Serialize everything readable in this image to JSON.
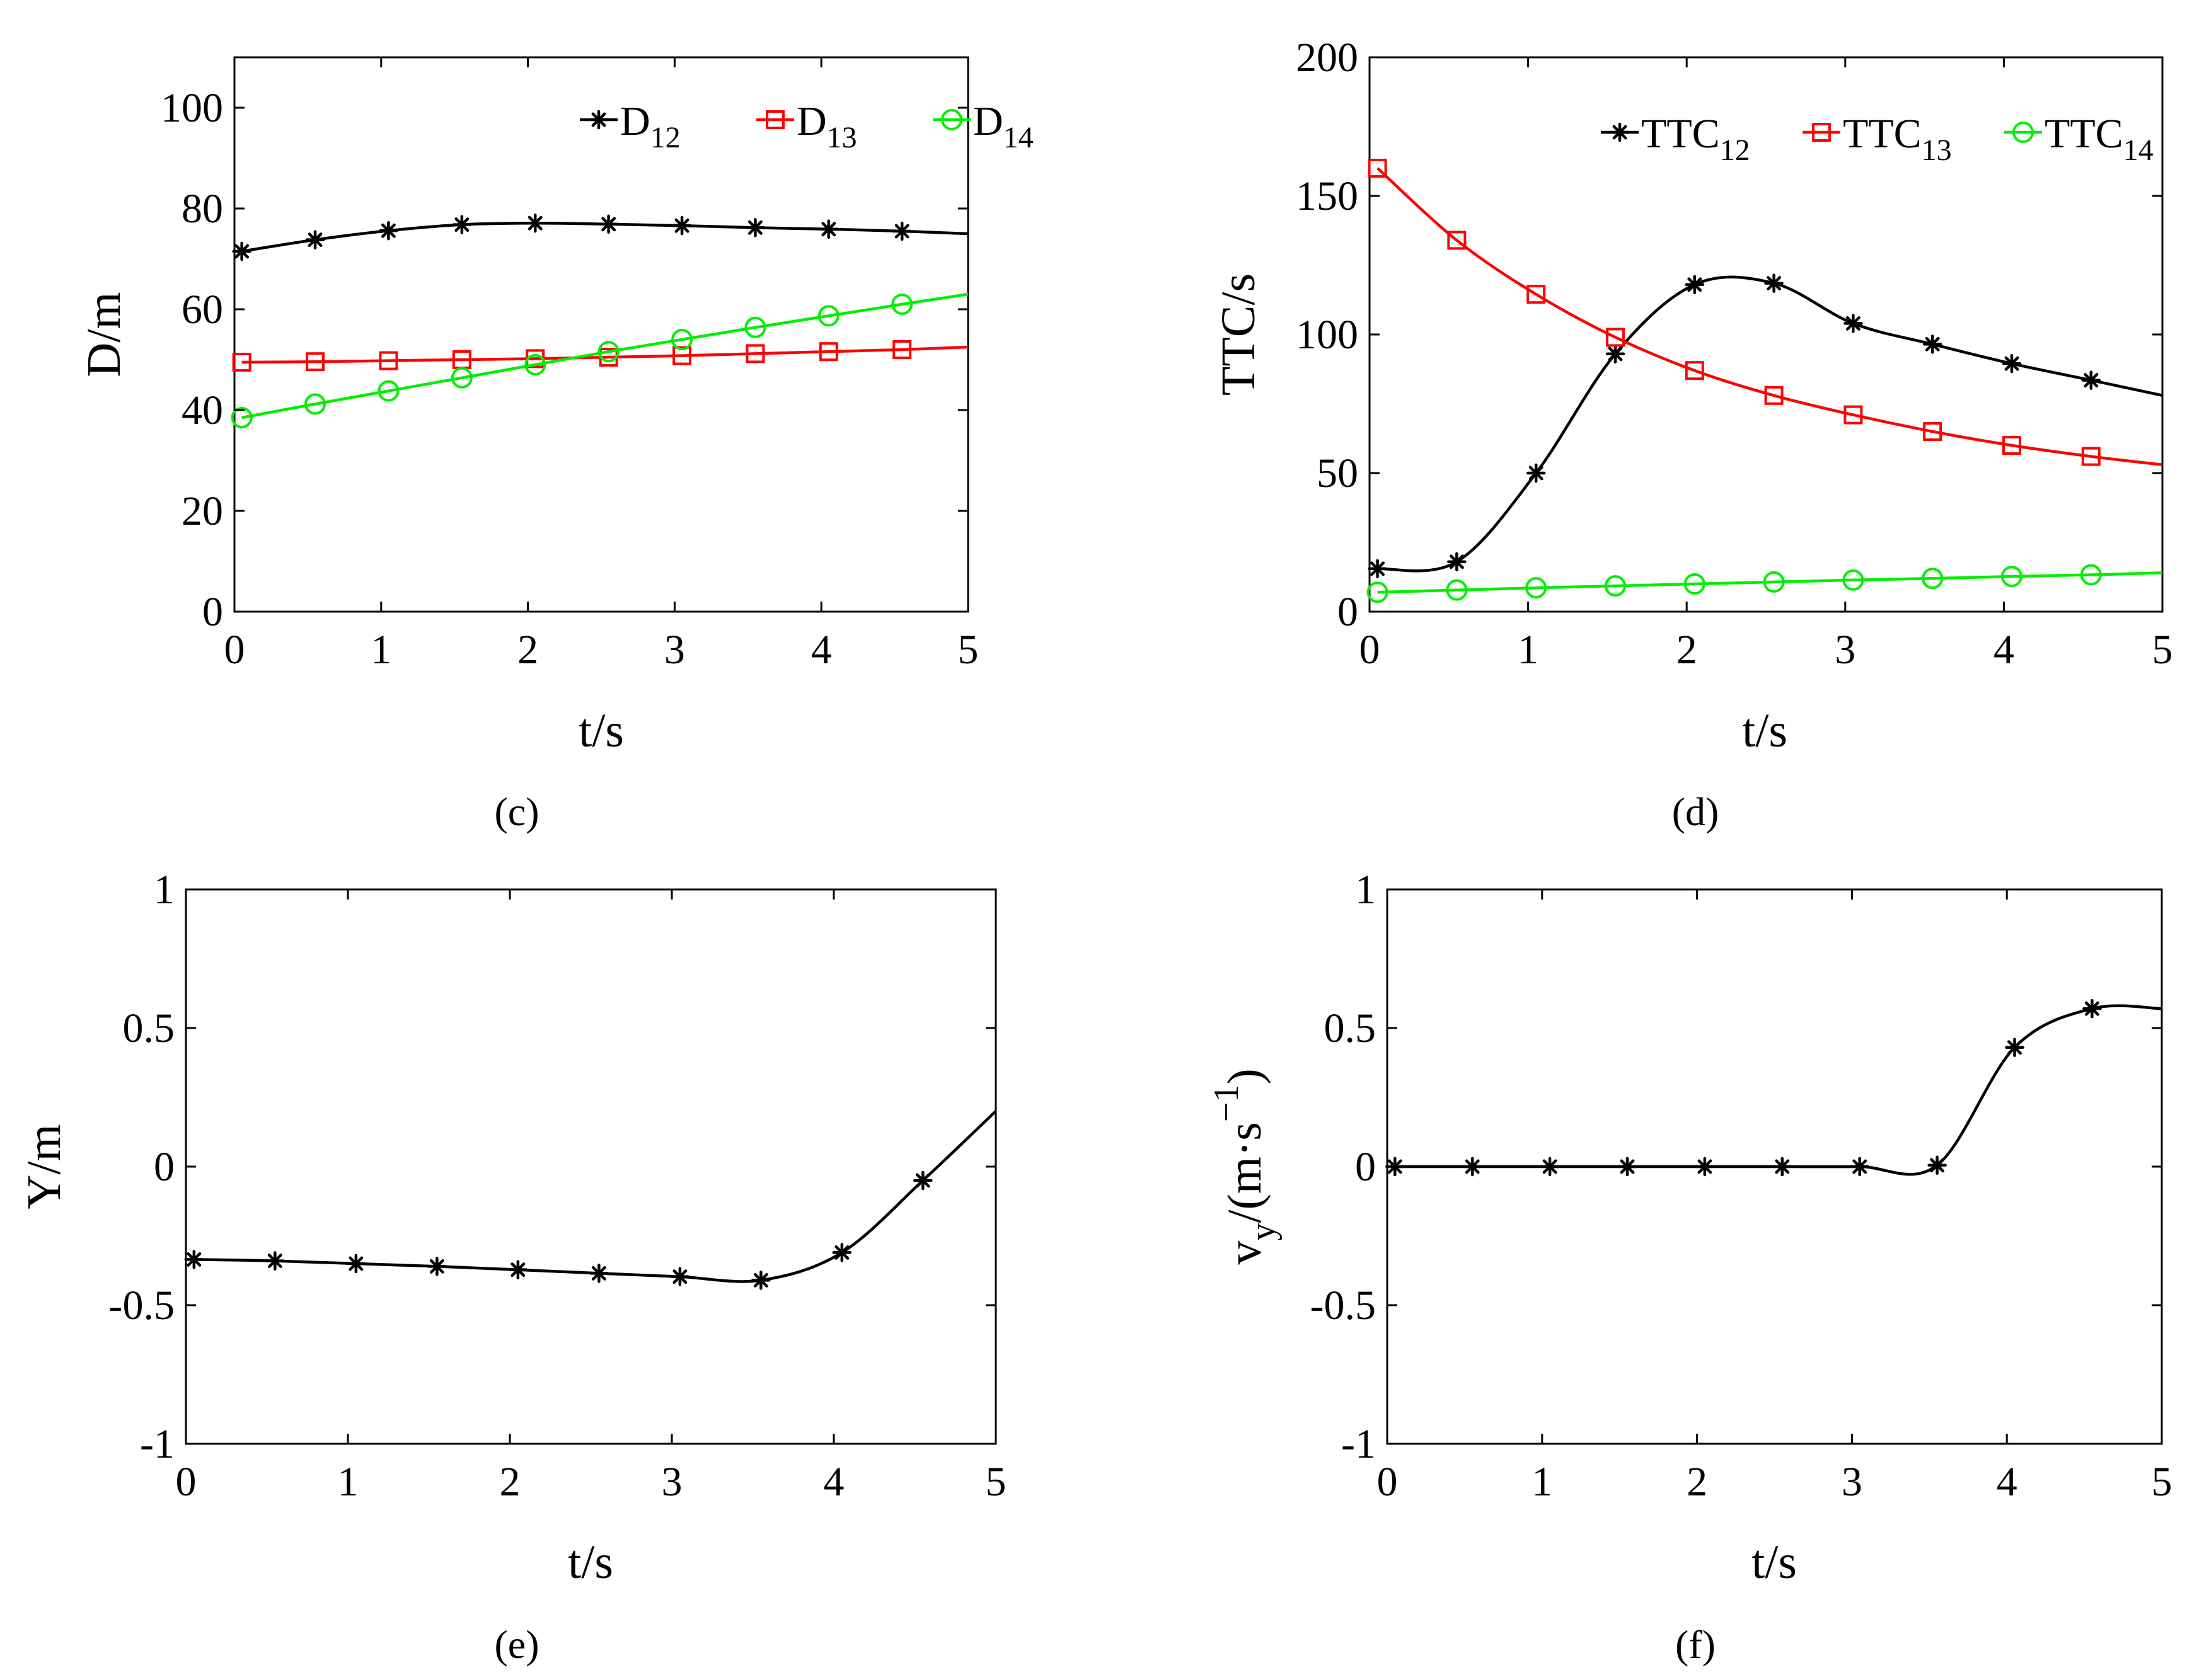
{
  "chart_data": [
    {
      "panel": "(c)",
      "type": "line",
      "xlabel": "t/s",
      "ylabel": "D/m",
      "xlim": [
        0,
        5
      ],
      "ylim": [
        0,
        110
      ],
      "xticks": [
        0,
        1,
        2,
        3,
        4,
        5
      ],
      "yticks": [
        0,
        20,
        40,
        60,
        80,
        100
      ],
      "legend_position": "top-right",
      "series": [
        {
          "name": "D",
          "sub": "12",
          "color": "#000000",
          "marker": "star",
          "x": [
            0.05,
            0.55,
            1.05,
            1.55,
            2.05,
            2.55,
            3.05,
            3.55,
            4.05,
            4.55,
            5.0
          ],
          "y": [
            71.5,
            73.8,
            75.6,
            76.8,
            77.1,
            76.9,
            76.6,
            76.2,
            75.9,
            75.5,
            75.0
          ]
        },
        {
          "name": "D",
          "sub": "13",
          "color": "#ff0000",
          "marker": "square",
          "x": [
            0.05,
            0.55,
            1.05,
            1.55,
            2.05,
            2.55,
            3.05,
            3.55,
            4.05,
            4.55,
            5.0
          ],
          "y": [
            49.5,
            49.6,
            49.8,
            50.0,
            50.2,
            50.5,
            50.8,
            51.2,
            51.6,
            52.0,
            52.5
          ]
        },
        {
          "name": "D",
          "sub": "14",
          "color": "#00ee00",
          "marker": "circle",
          "x": [
            0.05,
            0.55,
            1.05,
            1.55,
            2.05,
            2.55,
            3.05,
            3.55,
            4.05,
            4.55,
            5.0
          ],
          "y": [
            38.5,
            41.2,
            43.8,
            46.4,
            49.0,
            51.6,
            54.0,
            56.4,
            58.7,
            61.0,
            63.0
          ]
        }
      ]
    },
    {
      "panel": "(d)",
      "type": "line",
      "xlabel": "t/s",
      "ylabel": "TTC/s",
      "xlim": [
        0,
        5
      ],
      "ylim": [
        0,
        200
      ],
      "xticks": [
        0,
        1,
        2,
        3,
        4,
        5
      ],
      "yticks": [
        0,
        50,
        100,
        150,
        200
      ],
      "legend_position": "top-right",
      "series": [
        {
          "name": "TTC",
          "sub": "12",
          "color": "#000000",
          "marker": "star",
          "x": [
            0.05,
            0.55,
            1.05,
            1.55,
            2.05,
            2.55,
            3.05,
            3.55,
            4.05,
            4.55,
            5.0
          ],
          "y": [
            15.5,
            18.0,
            50.0,
            93.0,
            118.0,
            118.5,
            104.0,
            96.5,
            89.5,
            83.5,
            78.0
          ]
        },
        {
          "name": "TTC",
          "sub": "13",
          "color": "#ff0000",
          "marker": "square",
          "x": [
            0.05,
            0.55,
            1.05,
            1.55,
            2.05,
            2.55,
            3.05,
            3.55,
            4.05,
            4.55,
            5.0
          ],
          "y": [
            160.0,
            134.0,
            114.5,
            99.0,
            87.0,
            78.0,
            71.0,
            65.0,
            60.0,
            56.0,
            53.0
          ]
        },
        {
          "name": "TTC",
          "sub": "14",
          "color": "#00ee00",
          "marker": "circle",
          "x": [
            0.05,
            0.55,
            1.05,
            1.55,
            2.05,
            2.55,
            3.05,
            3.55,
            4.05,
            4.55,
            5.0
          ],
          "y": [
            7.0,
            7.8,
            8.6,
            9.3,
            10.0,
            10.7,
            11.4,
            12.0,
            12.7,
            13.3,
            14.0
          ]
        }
      ]
    },
    {
      "panel": "(e)",
      "type": "line",
      "xlabel": "t/s",
      "ylabel": "Y/m",
      "xlim": [
        0,
        5
      ],
      "ylim": [
        -1,
        1
      ],
      "xticks": [
        0,
        1,
        2,
        3,
        4,
        5
      ],
      "yticks": [
        -1,
        -0.5,
        0,
        0.5,
        1
      ],
      "series": [
        {
          "name": "Y",
          "color": "#000000",
          "marker": "star",
          "x": [
            0.05,
            0.55,
            1.05,
            1.55,
            2.05,
            2.55,
            3.05,
            3.55,
            4.05,
            4.55,
            5.0
          ],
          "y": [
            -0.335,
            -0.34,
            -0.35,
            -0.36,
            -0.372,
            -0.385,
            -0.397,
            -0.41,
            -0.31,
            -0.05,
            0.2
          ]
        }
      ]
    },
    {
      "panel": "(f)",
      "type": "line",
      "xlabel": "t/s",
      "ylabel": "v",
      "ylabel_sub": "y",
      "ylabel_rest": "/(m·s",
      "ylabel_sup": "−1",
      "ylabel_close": ")",
      "xlim": [
        0,
        5
      ],
      "ylim": [
        -1,
        1
      ],
      "xticks": [
        0,
        1,
        2,
        3,
        4,
        5
      ],
      "yticks": [
        -1,
        -0.5,
        0,
        0.5,
        1
      ],
      "series": [
        {
          "name": "v_y",
          "color": "#000000",
          "marker": "star",
          "x": [
            0.05,
            0.55,
            1.05,
            1.55,
            2.05,
            2.55,
            3.05,
            3.55,
            4.05,
            4.55,
            5.0
          ],
          "y": [
            0,
            0,
            0,
            0,
            0,
            0,
            0,
            0.005,
            0.43,
            0.57,
            0.57
          ]
        }
      ]
    }
  ]
}
